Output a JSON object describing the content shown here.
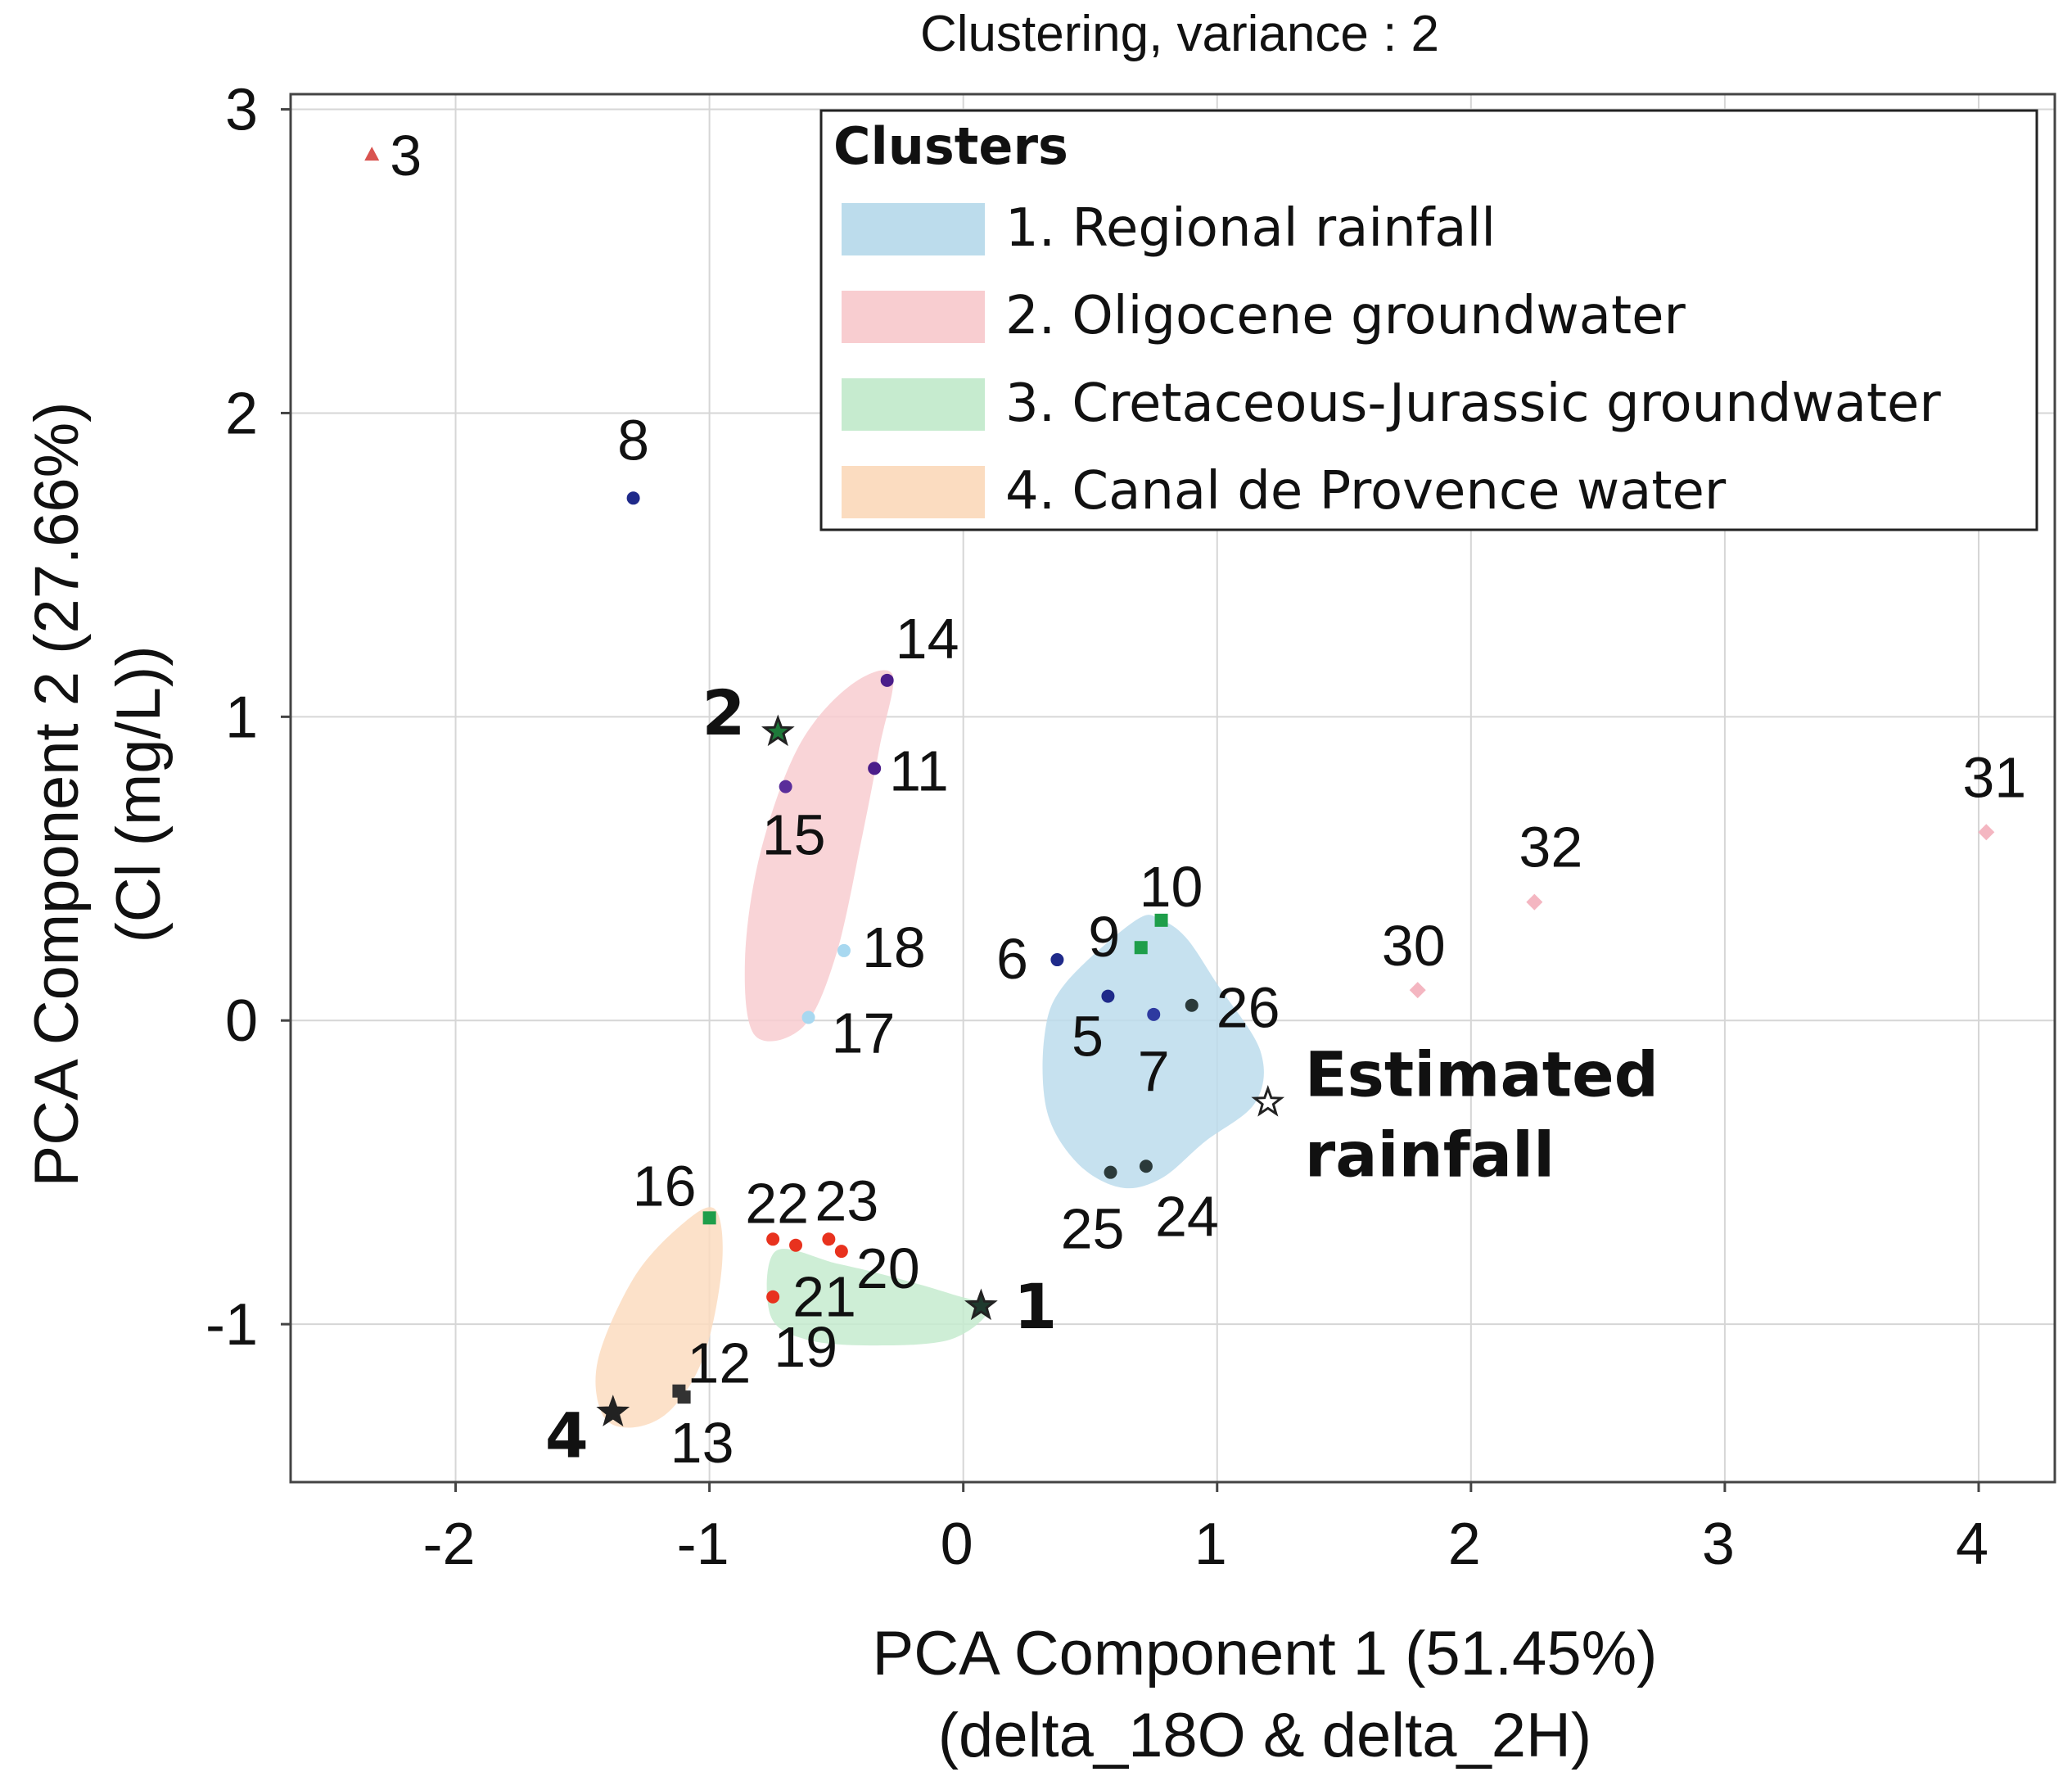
{
  "chart_data": {
    "type": "scatter",
    "title": "Clustering, variance : 2",
    "xlabel": [
      "PCA Component 1 (51.45%)",
      "(delta_18O & delta_2H)"
    ],
    "ylabel": [
      "PCA Component 2 (27.66%)",
      "(Cl (mg/L))"
    ],
    "xlim": [
      -2.65,
      4.3
    ],
    "ylim": [
      -1.52,
      3.05
    ],
    "xticks": [
      -2,
      -1,
      0,
      1,
      2,
      3,
      4
    ],
    "yticks": [
      -1,
      0,
      1,
      2,
      3
    ],
    "grid": true,
    "legend": {
      "title": "Clusters",
      "position": "top-right",
      "entries": [
        {
          "label": "1. Regional rainfall",
          "color": "#bcdcec"
        },
        {
          "label": "2. Oligocene groundwater",
          "color": "#f8cdd0"
        },
        {
          "label": "3. Cretaceous-Jurassic groundwater",
          "color": "#c6ebcf"
        },
        {
          "label": "4. Canal de Provence water",
          "color": "#fbdcc0"
        }
      ]
    },
    "clusters": [
      {
        "name": "1. Regional rainfall",
        "color": "#bcdcec",
        "hull": [
          [
            0.78,
            0.33
          ],
          [
            0.68,
            0.33
          ],
          [
            0.4,
            0.12
          ],
          [
            0.32,
            -0.05
          ],
          [
            0.33,
            -0.3
          ],
          [
            0.45,
            -0.47
          ],
          [
            0.62,
            -0.55
          ],
          [
            0.78,
            -0.52
          ],
          [
            0.95,
            -0.4
          ],
          [
            1.15,
            -0.27
          ],
          [
            1.17,
            -0.1
          ],
          [
            1.0,
            0.12
          ],
          [
            0.88,
            0.27
          ]
        ]
      },
      {
        "name": "2. Oligocene groundwater",
        "color": "#f8cdd0",
        "hull": [
          [
            -0.28,
            1.14
          ],
          [
            -0.45,
            1.1
          ],
          [
            -0.65,
            0.9
          ],
          [
            -0.8,
            0.55
          ],
          [
            -0.86,
            0.2
          ],
          [
            -0.82,
            -0.05
          ],
          [
            -0.63,
            -0.02
          ],
          [
            -0.5,
            0.22
          ],
          [
            -0.4,
            0.6
          ],
          [
            -0.33,
            0.9
          ]
        ]
      },
      {
        "name": "3. Cretaceous-Jurassic groundwater",
        "color": "#c6ebcf",
        "hull": [
          [
            -0.74,
            -0.76
          ],
          [
            -0.5,
            -0.8
          ],
          [
            -0.3,
            -0.84
          ],
          [
            -0.05,
            -0.9
          ],
          [
            0.1,
            -0.95
          ],
          [
            -0.05,
            -1.05
          ],
          [
            -0.35,
            -1.07
          ],
          [
            -0.62,
            -1.05
          ],
          [
            -0.76,
            -0.97
          ]
        ]
      },
      {
        "name": "4. Canal de Provence water",
        "color": "#fbdcc0",
        "hull": [
          [
            -0.98,
            -0.62
          ],
          [
            -0.95,
            -0.8
          ],
          [
            -1.02,
            -1.1
          ],
          [
            -1.15,
            -1.28
          ],
          [
            -1.3,
            -1.34
          ],
          [
            -1.42,
            -1.3
          ],
          [
            -1.44,
            -1.12
          ],
          [
            -1.3,
            -0.85
          ],
          [
            -1.12,
            -0.68
          ]
        ]
      }
    ],
    "points": [
      {
        "label": "3",
        "x": -2.33,
        "y": 2.85,
        "marker": "triangle",
        "color": "#d9534f",
        "label_dx": 22,
        "label_dy": 0,
        "anchor": "start"
      },
      {
        "label": "8",
        "x": -1.3,
        "y": 1.72,
        "marker": "circle",
        "color": "#1f2a8a",
        "label_dx": 0,
        "label_dy": -72,
        "anchor": "middle"
      },
      {
        "label": "14",
        "x": -0.3,
        "y": 1.12,
        "marker": "circle",
        "color": "#4b1d8a",
        "label_dx": 10,
        "label_dy": -52,
        "anchor": "start"
      },
      {
        "label": "11",
        "x": -0.35,
        "y": 0.83,
        "marker": "circle",
        "color": "#4b1d8a",
        "label_dx": 18,
        "label_dy": 2,
        "anchor": "start"
      },
      {
        "label": "15",
        "x": -0.7,
        "y": 0.77,
        "marker": "circle",
        "color": "#5a2d9a",
        "label_dx": 10,
        "label_dy": 58,
        "anchor": "middle"
      },
      {
        "label": "18",
        "x": -0.47,
        "y": 0.23,
        "marker": "circle",
        "color": "#a8d8f0",
        "label_dx": 22,
        "label_dy": -5,
        "anchor": "start"
      },
      {
        "label": "17",
        "x": -0.61,
        "y": 0.01,
        "marker": "circle",
        "color": "#a8d8f0",
        "label_dx": 28,
        "label_dy": 18,
        "anchor": "start"
      },
      {
        "label": "6",
        "x": 0.37,
        "y": 0.2,
        "marker": "circle",
        "color": "#1f2a8a",
        "label_dx": -55,
        "label_dy": -2,
        "anchor": "middle"
      },
      {
        "label": "9",
        "x": 0.7,
        "y": 0.24,
        "marker": "square",
        "color": "#1e9e4a",
        "label_dx": -45,
        "label_dy": -14,
        "anchor": "middle"
      },
      {
        "label": "10",
        "x": 0.78,
        "y": 0.33,
        "marker": "square",
        "color": "#1e9e4a",
        "label_dx": 12,
        "label_dy": -42,
        "anchor": "middle"
      },
      {
        "label": "5",
        "x": 0.57,
        "y": 0.08,
        "marker": "circle",
        "color": "#1f2a8a",
        "label_dx": -25,
        "label_dy": 48,
        "anchor": "middle"
      },
      {
        "label": "7",
        "x": 0.75,
        "y": 0.02,
        "marker": "circle",
        "color": "#2e3aa0",
        "label_dx": 0,
        "label_dy": 68,
        "anchor": "middle"
      },
      {
        "label": "26",
        "x": 0.9,
        "y": 0.05,
        "marker": "circle",
        "color": "#2b3a3a",
        "label_dx": 30,
        "label_dy": 2,
        "anchor": "start"
      },
      {
        "label": "25",
        "x": 0.58,
        "y": -0.5,
        "marker": "circle",
        "color": "#2b3a3a",
        "label_dx": -22,
        "label_dy": 68,
        "anchor": "middle"
      },
      {
        "label": "24",
        "x": 0.72,
        "y": -0.48,
        "marker": "circle",
        "color": "#2b3a3a",
        "label_dx": 50,
        "label_dy": 60,
        "anchor": "middle"
      },
      {
        "label": "30",
        "x": 1.79,
        "y": 0.1,
        "marker": "diamond",
        "color": "#f4b6c1",
        "label_dx": -5,
        "label_dy": -55,
        "anchor": "middle"
      },
      {
        "label": "32",
        "x": 2.25,
        "y": 0.39,
        "marker": "diamond",
        "color": "#f4b6c1",
        "label_dx": 20,
        "label_dy": -68,
        "anchor": "middle"
      },
      {
        "label": "31",
        "x": 4.03,
        "y": 0.62,
        "marker": "diamond",
        "color": "#f4b6c1",
        "label_dx": 10,
        "label_dy": -68,
        "anchor": "middle"
      },
      {
        "label": "16",
        "x": -1.0,
        "y": -0.65,
        "marker": "square",
        "color": "#1e9e4a",
        "label_dx": -55,
        "label_dy": -40,
        "anchor": "middle"
      },
      {
        "label": "22",
        "x": -0.75,
        "y": -0.72,
        "marker": "circle",
        "color": "#e8321e",
        "label_dx": 5,
        "label_dy": -45,
        "anchor": "middle"
      },
      {
        "label": "23",
        "x": -0.53,
        "y": -0.72,
        "marker": "circle",
        "color": "#e8321e",
        "label_dx": 22,
        "label_dy": -48,
        "anchor": "middle"
      },
      {
        "label": "20",
        "x": -0.48,
        "y": -0.76,
        "marker": "circle",
        "color": "#e8321e",
        "label_dx": 18,
        "label_dy": 20,
        "anchor": "start"
      },
      {
        "label": "21",
        "x": -0.66,
        "y": -0.74,
        "marker": "circle",
        "color": "#e8321e",
        "label_dx": 35,
        "label_dy": 62,
        "anchor": "middle"
      },
      {
        "label": "19",
        "x": -0.75,
        "y": -0.91,
        "marker": "circle",
        "color": "#e8321e",
        "label_dx": 40,
        "label_dy": 60,
        "anchor": "middle"
      },
      {
        "label": "12",
        "x": -1.12,
        "y": -1.22,
        "marker": "square",
        "color": "#333333",
        "label_dx": 10,
        "label_dy": -35,
        "anchor": "start"
      },
      {
        "label": "13",
        "x": -1.1,
        "y": -1.24,
        "marker": "square",
        "color": "#333333",
        "label_dx": 22,
        "label_dy": 55,
        "anchor": "middle"
      }
    ],
    "star_points": [
      {
        "label": "1",
        "x": 0.07,
        "y": -0.94,
        "color": "#1f3a2e",
        "bold": true,
        "label_dx": 40,
        "label_dy": 2,
        "anchor": "start"
      },
      {
        "label": "2",
        "x": -0.73,
        "y": 0.95,
        "color": "#1e7a3a",
        "bold": true,
        "label_dx": -40,
        "label_dy": -22,
        "anchor": "end"
      },
      {
        "label": "4",
        "x": -1.38,
        "y": -1.29,
        "color": "#222222",
        "bold": true,
        "label_dx": -30,
        "label_dy": 30,
        "anchor": "end"
      },
      {
        "label": "Estimated rainfall",
        "line1": "Estimated",
        "line2": "rainfall",
        "x": 1.2,
        "y": -0.27,
        "color": "#ffffff",
        "bold": true,
        "label_dx": 45,
        "label_dy": -8,
        "anchor": "start"
      }
    ]
  }
}
